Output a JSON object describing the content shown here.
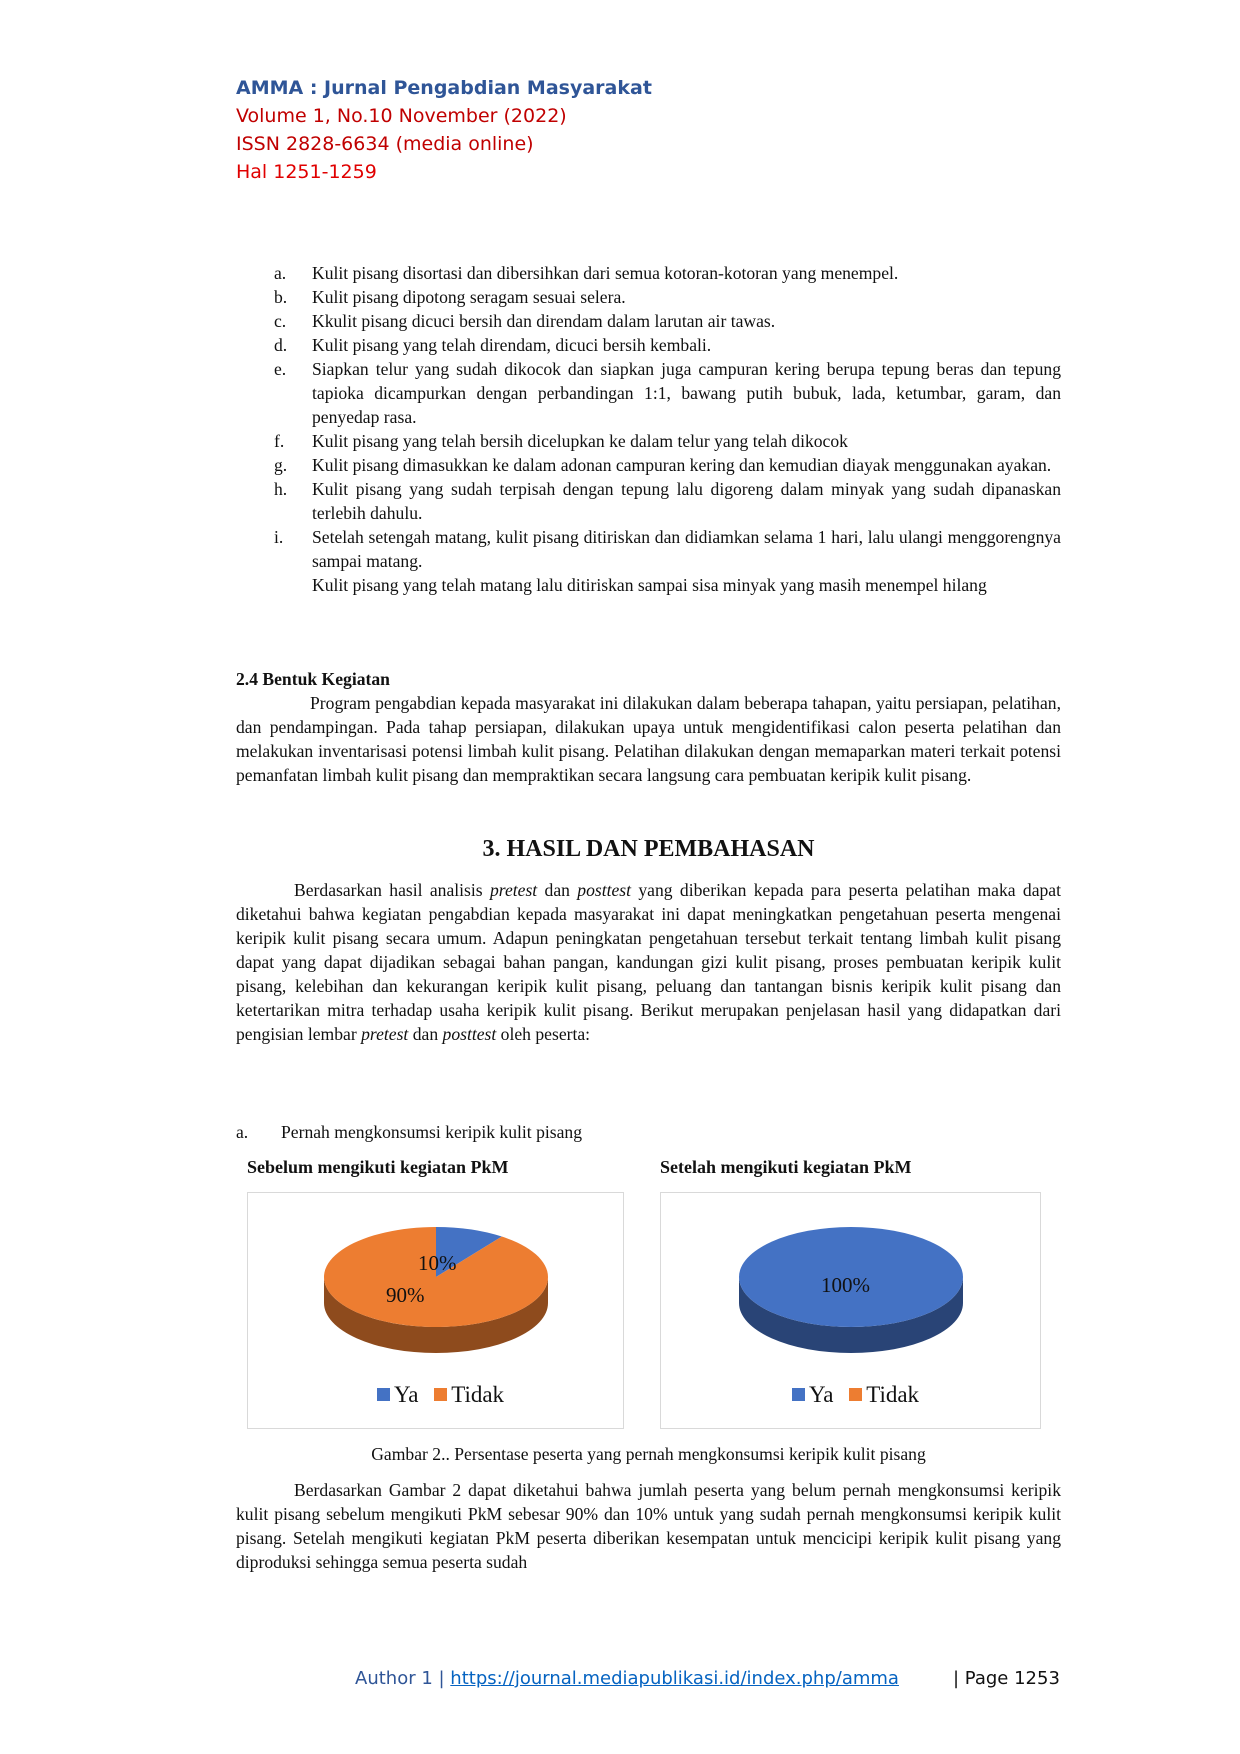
{
  "header": {
    "journal": "AMMA : Jurnal Pengabdian Masyarakat",
    "volume": "Volume 1, No.10 November (2022)",
    "issn": "ISSN 2828-6634 (media online)",
    "pages": "Hal 1251-1259"
  },
  "steps": [
    {
      "m": "a.",
      "t": "Kulit pisang disortasi dan dibersihkan dari semua kotoran-kotoran yang menempel."
    },
    {
      "m": "b.",
      "t": "Kulit pisang dipotong seragam sesuai selera."
    },
    {
      "m": "c.",
      "t": "Kkulit pisang dicuci bersih dan direndam dalam larutan air tawas."
    },
    {
      "m": "d.",
      "t": "Kulit pisang yang telah direndam, dicuci bersih kembali."
    },
    {
      "m": "e.",
      "t": "Siapkan telur yang sudah dikocok dan siapkan juga campuran kering berupa tepung beras dan tepung tapioka dicampurkan dengan perbandingan 1:1, bawang putih bubuk, lada, ketumbar, garam, dan penyedap rasa."
    },
    {
      "m": "f.",
      "t": "Kulit pisang yang telah bersih dicelupkan ke dalam telur yang telah dikocok"
    },
    {
      "m": "g.",
      "t": "Kulit pisang dimasukkan ke dalam adonan campuran kering dan kemudian diayak menggunakan ayakan."
    },
    {
      "m": "h.",
      "t": "Kulit pisang yang sudah terpisah dengan tepung lalu digoreng dalam minyak yang sudah dipanaskan terlebih dahulu."
    },
    {
      "m": "i.",
      "t": "Setelah setengah matang, kulit pisang ditiriskan dan didiamkan selama 1 hari, lalu ulangi menggorengnya sampai matang."
    },
    {
      "m": "",
      "t": "Kulit pisang yang telah matang lalu ditiriskan sampai sisa minyak yang masih menempel hilang"
    }
  ],
  "section24": {
    "title": "2.4 Bentuk Kegiatan",
    "body": "Program pengabdian kepada masyarakat ini dilakukan dalam beberapa tahapan, yaitu persiapan, pelatihan, dan pendampingan. Pada tahap persiapan, dilakukan upaya untuk mengidentifikasi calon peserta pelatihan dan melakukan inventarisasi potensi limbah kulit pisang. Pelatihan dilakukan dengan memaparkan materi terkait potensi pemanfatan limbah kulit pisang dan mempraktikan secara langsung cara pembuatan keripik kulit pisang."
  },
  "section3": {
    "title": "3.   HASIL DAN PEMBAHASAN",
    "p1a": "Berdasarkan hasil analisis ",
    "p1b": "pretest",
    "p1c": " dan ",
    "p1d": "posttest",
    "p1e": " yang diberikan kepada para peserta pelatihan maka dapat diketahui bahwa kegiatan pengabdian kepada masyarakat ini dapat meningkatkan pengetahuan peserta mengenai keripik kulit pisang secara umum. Adapun peningkatan pengetahuan tersebut terkait tentang limbah kulit pisang dapat yang dapat dijadikan sebagai bahan pangan, kandungan gizi kulit pisang, proses pembuatan keripik kulit pisang, kelebihan dan kekurangan keripik kulit pisang, peluang dan tantangan bisnis keripik kulit pisang dan ketertarikan mitra terhadap usaha keripik kulit pisang. Berikut merupakan penjelasan hasil yang didapatkan dari pengisian lembar ",
    "p1f": "pretest",
    "p1g": " dan ",
    "p1h": "posttest",
    "p1i": " oleh peserta:",
    "item_marker": "a.",
    "item_text": "Pernah mengkonsumsi keripik kulit pisang",
    "caption": "Gambar 2.. Persentase peserta yang pernah mengkonsumsi keripik kulit pisang",
    "p2": "Berdasarkan Gambar 2 dapat diketahui bahwa jumlah peserta yang belum pernah mengkonsumsi keripik kulit pisang sebelum mengikuti PkM sebesar 90% dan 10% untuk yang sudah pernah mengkonsumsi keripik kulit pisang. Setelah mengikuti kegiatan PkM peserta diberikan kesempatan untuk mencicipi keripik kulit pisang yang diproduksi sehingga semua peserta sudah"
  },
  "chart_data": [
    {
      "type": "pie",
      "title": "Sebelum mengikuti kegiatan PkM",
      "categories": [
        "Ya",
        "Tidak"
      ],
      "values": [
        10,
        90
      ],
      "labels": [
        "10%",
        "90%"
      ],
      "colors": [
        "#4472c4",
        "#ed7d31"
      ],
      "style": "3d",
      "legend": "bottom"
    },
    {
      "type": "pie",
      "title": "Setelah mengikuti kegiatan PkM",
      "categories": [
        "Ya",
        "Tidak"
      ],
      "values": [
        100,
        0
      ],
      "labels": [
        "100%"
      ],
      "colors": [
        "#4472c4",
        "#ed7d31"
      ],
      "style": "3d",
      "legend": "bottom"
    }
  ],
  "footer": {
    "author": "Author 1 | ",
    "url": "https://journal.mediapublikasi.id/index.php/amma",
    "page": "| Page 1253"
  },
  "colors": {
    "journal_blue": "#2f5597",
    "header_red": "#c00000",
    "link_blue": "#0563c1"
  }
}
